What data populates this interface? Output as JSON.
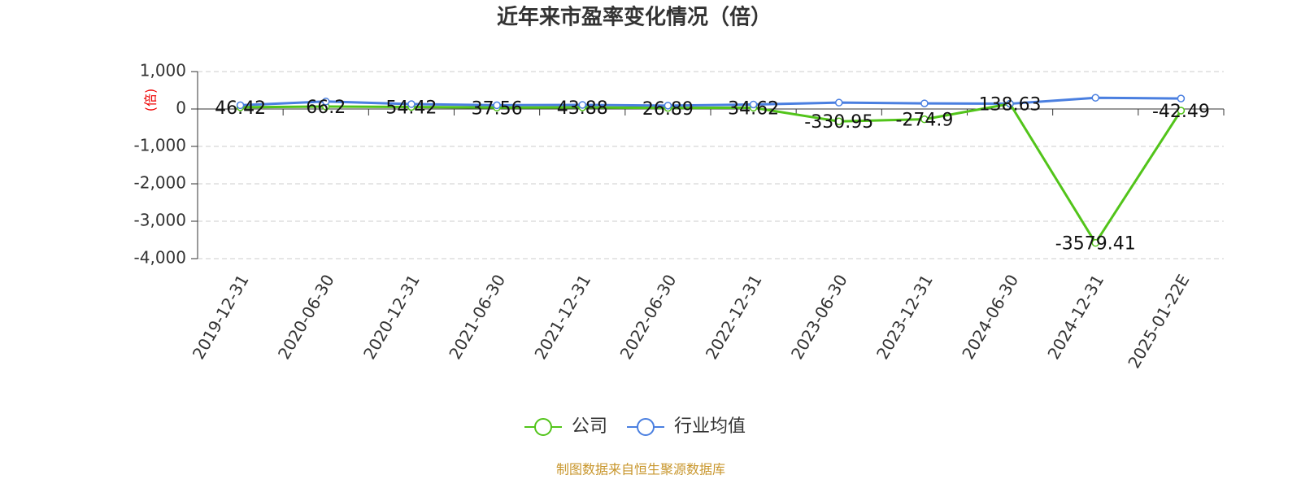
{
  "chart_data": {
    "type": "line",
    "title": "近年来市盈率变化情况（倍）",
    "ylabel": "(倍)",
    "source": "制图数据来自恒生聚源数据库",
    "categories": [
      "2019-12-31",
      "2020-06-30",
      "2020-12-31",
      "2021-06-30",
      "2021-12-31",
      "2022-06-30",
      "2022-12-31",
      "2023-06-30",
      "2023-12-31",
      "2024-06-30",
      "2024-12-31",
      "2025-01-22E"
    ],
    "series": [
      {
        "name": "公司",
        "color": "#52c41a",
        "show_labels": true,
        "values": [
          46.42,
          66.2,
          54.42,
          37.56,
          43.88,
          26.89,
          34.62,
          -330.95,
          -274.9,
          138.63,
          -3579.41,
          -42.49
        ]
      },
      {
        "name": "行业均值",
        "color": "#4a7fe0",
        "show_labels": false,
        "values": [
          100,
          200,
          130,
          100,
          110,
          90,
          120,
          170,
          150,
          140,
          300,
          280
        ]
      }
    ],
    "ylim": [
      -4000,
      1000
    ],
    "yticks": [
      {
        "value": 1000,
        "label": "1,000"
      },
      0,
      {
        "value": -1000,
        "label": "-1,000"
      },
      {
        "value": -2000,
        "label": "-2,000"
      },
      {
        "value": -3000,
        "label": "-3,000"
      },
      {
        "value": -4000,
        "label": "-4,000"
      }
    ],
    "grid": true
  }
}
